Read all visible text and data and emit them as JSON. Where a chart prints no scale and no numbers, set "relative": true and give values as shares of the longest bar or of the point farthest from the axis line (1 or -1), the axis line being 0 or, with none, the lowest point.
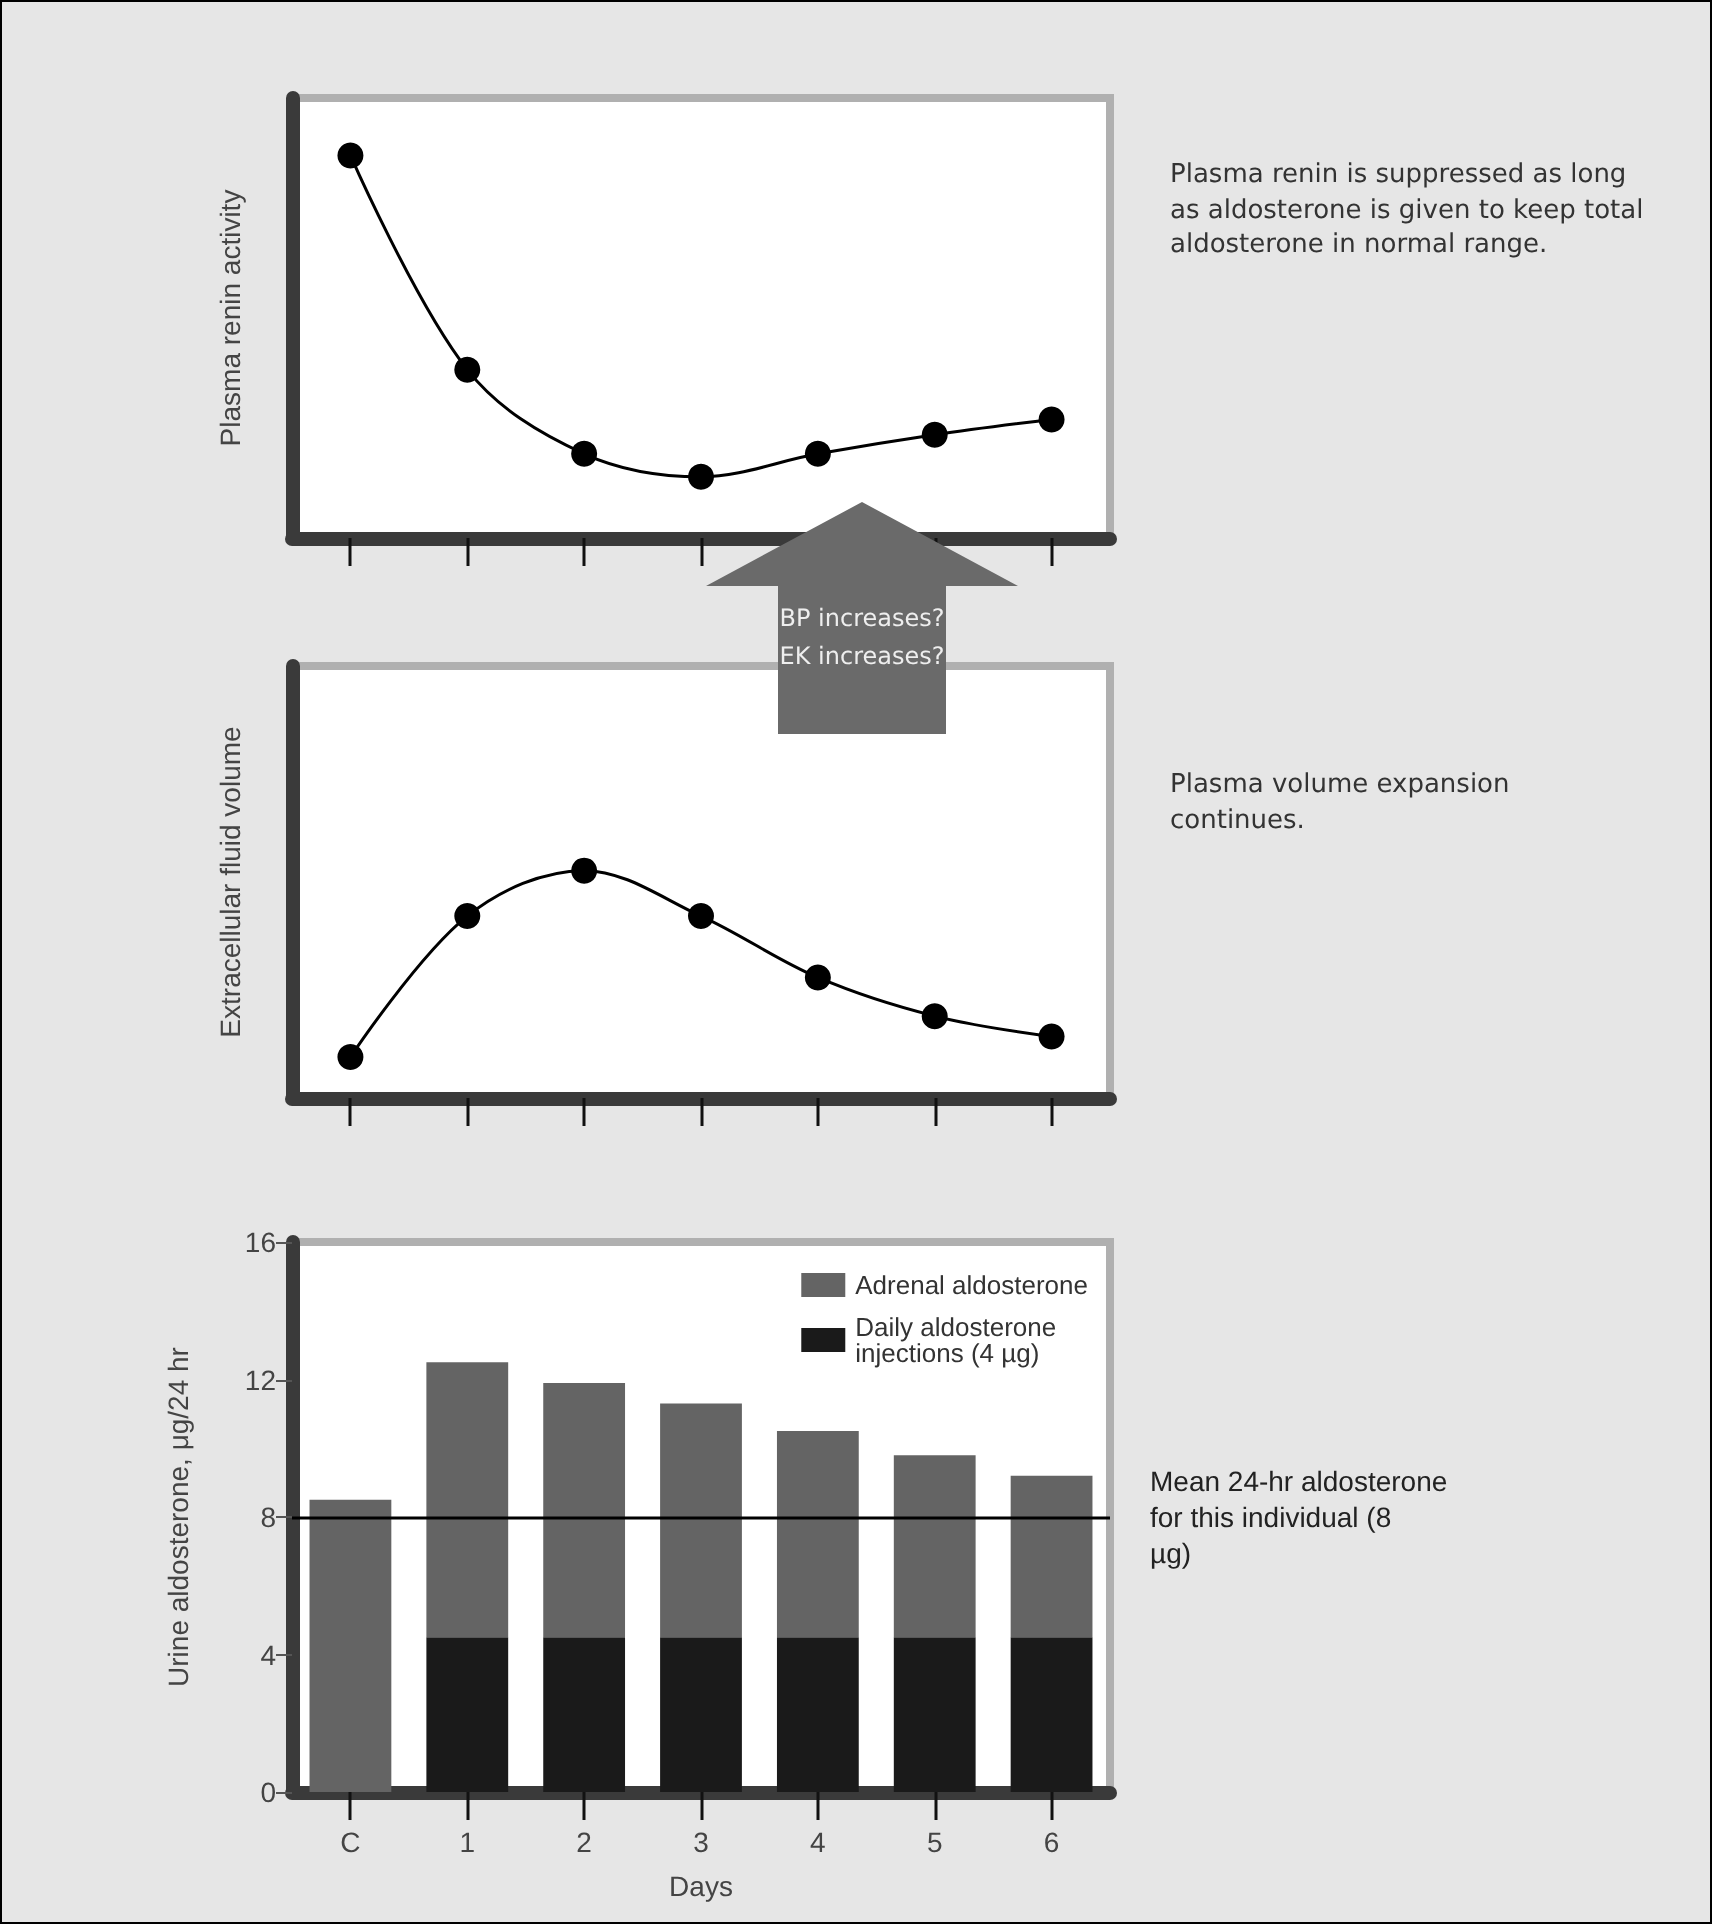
{
  "chart_data": [
    {
      "type": "line",
      "ylabel": "Plasma renin activity",
      "categories": [
        null,
        null,
        null,
        null,
        null,
        null,
        null
      ],
      "relative": true,
      "marker": "circle",
      "series": [
        {
          "color": "#000000",
          "values": [
            1,
            0.44,
            0.22,
            0.16,
            0.22,
            0.27,
            0.31
          ]
        }
      ],
      "annotations": [
        "Plasma renin is suppressed as long as aldosterone is given to keep total aldosterone in normal range."
      ]
    },
    {
      "type": "line",
      "ylabel": "Extracellular fluid volume",
      "categories": [
        null,
        null,
        null,
        null,
        null,
        null,
        null
      ],
      "relative": true,
      "marker": "circle",
      "series": [
        {
          "color": "#000000",
          "values": [
            0.18,
            0.8,
            1,
            0.8,
            0.53,
            0.36,
            0.27
          ]
        }
      ],
      "annotations": [
        "Plasma volume expansion continues.",
        "BP increases?",
        "EK increases?"
      ]
    },
    {
      "type": "bar",
      "ylabel": "Urine aldosterone, μg/24 hr",
      "xlabel": "Days",
      "categories": [
        "C",
        "1",
        "2",
        "3",
        "4",
        "5",
        "6"
      ],
      "stacked": true,
      "legend": "top right",
      "ylim": [
        0,
        16
      ],
      "yticks": [
        0,
        4,
        8,
        12,
        16
      ],
      "series": [
        {
          "name": "Daily aldosterone injections (4 µg)",
          "color": "#1a1a1a",
          "values": [
            null,
            4.5,
            4.5,
            4.5,
            4.5,
            4.5,
            4.5
          ]
        },
        {
          "name": "Adrenal aldosterone",
          "color": "#646464",
          "values": [
            8.5,
            8.0,
            7.4,
            6.8,
            6.0,
            5.3,
            4.7
          ]
        }
      ],
      "ref_lines": [
        {
          "axis": "y",
          "value": 8,
          "label": "Mean 24-hr aldosterone for this individual (8 µg)",
          "color": "#000000"
        }
      ]
    }
  ]
}
